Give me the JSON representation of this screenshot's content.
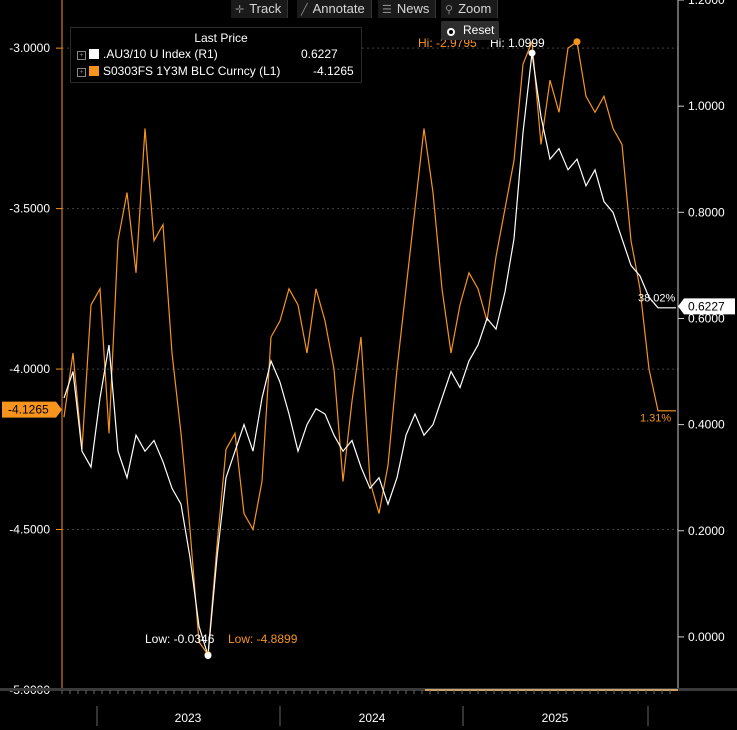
{
  "toolbar": {
    "track": "Track",
    "annotate": "Annotate",
    "news": "News",
    "zoom": "Zoom",
    "reset": "Reset"
  },
  "legend": {
    "title": "Last Price",
    "series": [
      {
        "label": ".AU3/10 U Index  (R1)",
        "value": "0.6227",
        "color": "#ffffff"
      },
      {
        "label": "S0303FS 1Y3M BLC Curncy  (L1)",
        "value": "-4.1265",
        "color": "#f7941d"
      }
    ]
  },
  "colors": {
    "white_series": "#ffffff",
    "orange_series": "#f7941d",
    "grid": "#3a3a3a"
  },
  "chart_data": {
    "type": "line",
    "x_ticks": [
      "2023",
      "2024",
      "2025"
    ],
    "left_axis": {
      "ticks": [
        "-3.0000",
        "-3.5000",
        "-4.0000",
        "-4.5000",
        "-5.0000"
      ],
      "ylim": [
        -5.0,
        -2.85
      ]
    },
    "right_axis": {
      "ticks": [
        "1.2000",
        "1.0000",
        "0.8000",
        "0.6000",
        "0.4000",
        "0.2000",
        "0.0000"
      ],
      "ylim": [
        -0.1,
        1.2
      ]
    },
    "series": [
      {
        "name": "S0303FS 1Y3M BLC Curncy (L1)",
        "axis": "left",
        "last_label": "-4.1265",
        "pct_label": "1.31%",
        "high_label": "Hi: -2.9795",
        "low_label": "Low: -4.8899",
        "values": [
          -4.15,
          -3.95,
          -4.25,
          -3.8,
          -3.75,
          -4.2,
          -3.6,
          -3.45,
          -3.7,
          -3.25,
          -3.6,
          -3.55,
          -3.95,
          -4.2,
          -4.5,
          -4.85,
          -4.89,
          -4.55,
          -4.25,
          -4.2,
          -4.45,
          -4.5,
          -4.35,
          -3.9,
          -3.85,
          -3.75,
          -3.8,
          -3.95,
          -3.75,
          -3.85,
          -4.0,
          -4.35,
          -4.1,
          -3.9,
          -4.35,
          -4.45,
          -4.3,
          -4.0,
          -3.75,
          -3.5,
          -3.25,
          -3.45,
          -3.75,
          -3.95,
          -3.8,
          -3.7,
          -3.75,
          -3.85,
          -3.65,
          -3.5,
          -3.35,
          -3.05,
          -2.98,
          -3.3,
          -3.1,
          -3.2,
          -3.0,
          -2.98,
          -3.15,
          -3.2,
          -3.15,
          -3.25,
          -3.3,
          -3.6,
          -3.75,
          -4.0,
          -4.13,
          -4.13,
          -4.13
        ]
      },
      {
        "name": ".AU3/10 U Index (R1)",
        "axis": "right",
        "last_label": "0.6227",
        "pct_label": "38.02%",
        "high_label": "Hi: 1.0999",
        "low_label": "Low: -0.0346",
        "values": [
          0.45,
          0.5,
          0.35,
          0.32,
          0.45,
          0.55,
          0.35,
          0.3,
          0.38,
          0.35,
          0.37,
          0.33,
          0.28,
          0.25,
          0.15,
          0.02,
          -0.035,
          0.15,
          0.3,
          0.35,
          0.4,
          0.35,
          0.45,
          0.52,
          0.48,
          0.42,
          0.35,
          0.4,
          0.43,
          0.42,
          0.38,
          0.35,
          0.37,
          0.32,
          0.28,
          0.3,
          0.25,
          0.3,
          0.38,
          0.42,
          0.38,
          0.4,
          0.45,
          0.5,
          0.47,
          0.52,
          0.55,
          0.6,
          0.58,
          0.65,
          0.75,
          0.95,
          1.1,
          0.98,
          0.9,
          0.92,
          0.88,
          0.9,
          0.85,
          0.88,
          0.82,
          0.8,
          0.75,
          0.7,
          0.68,
          0.64,
          0.62,
          0.62,
          0.62
        ]
      }
    ]
  }
}
